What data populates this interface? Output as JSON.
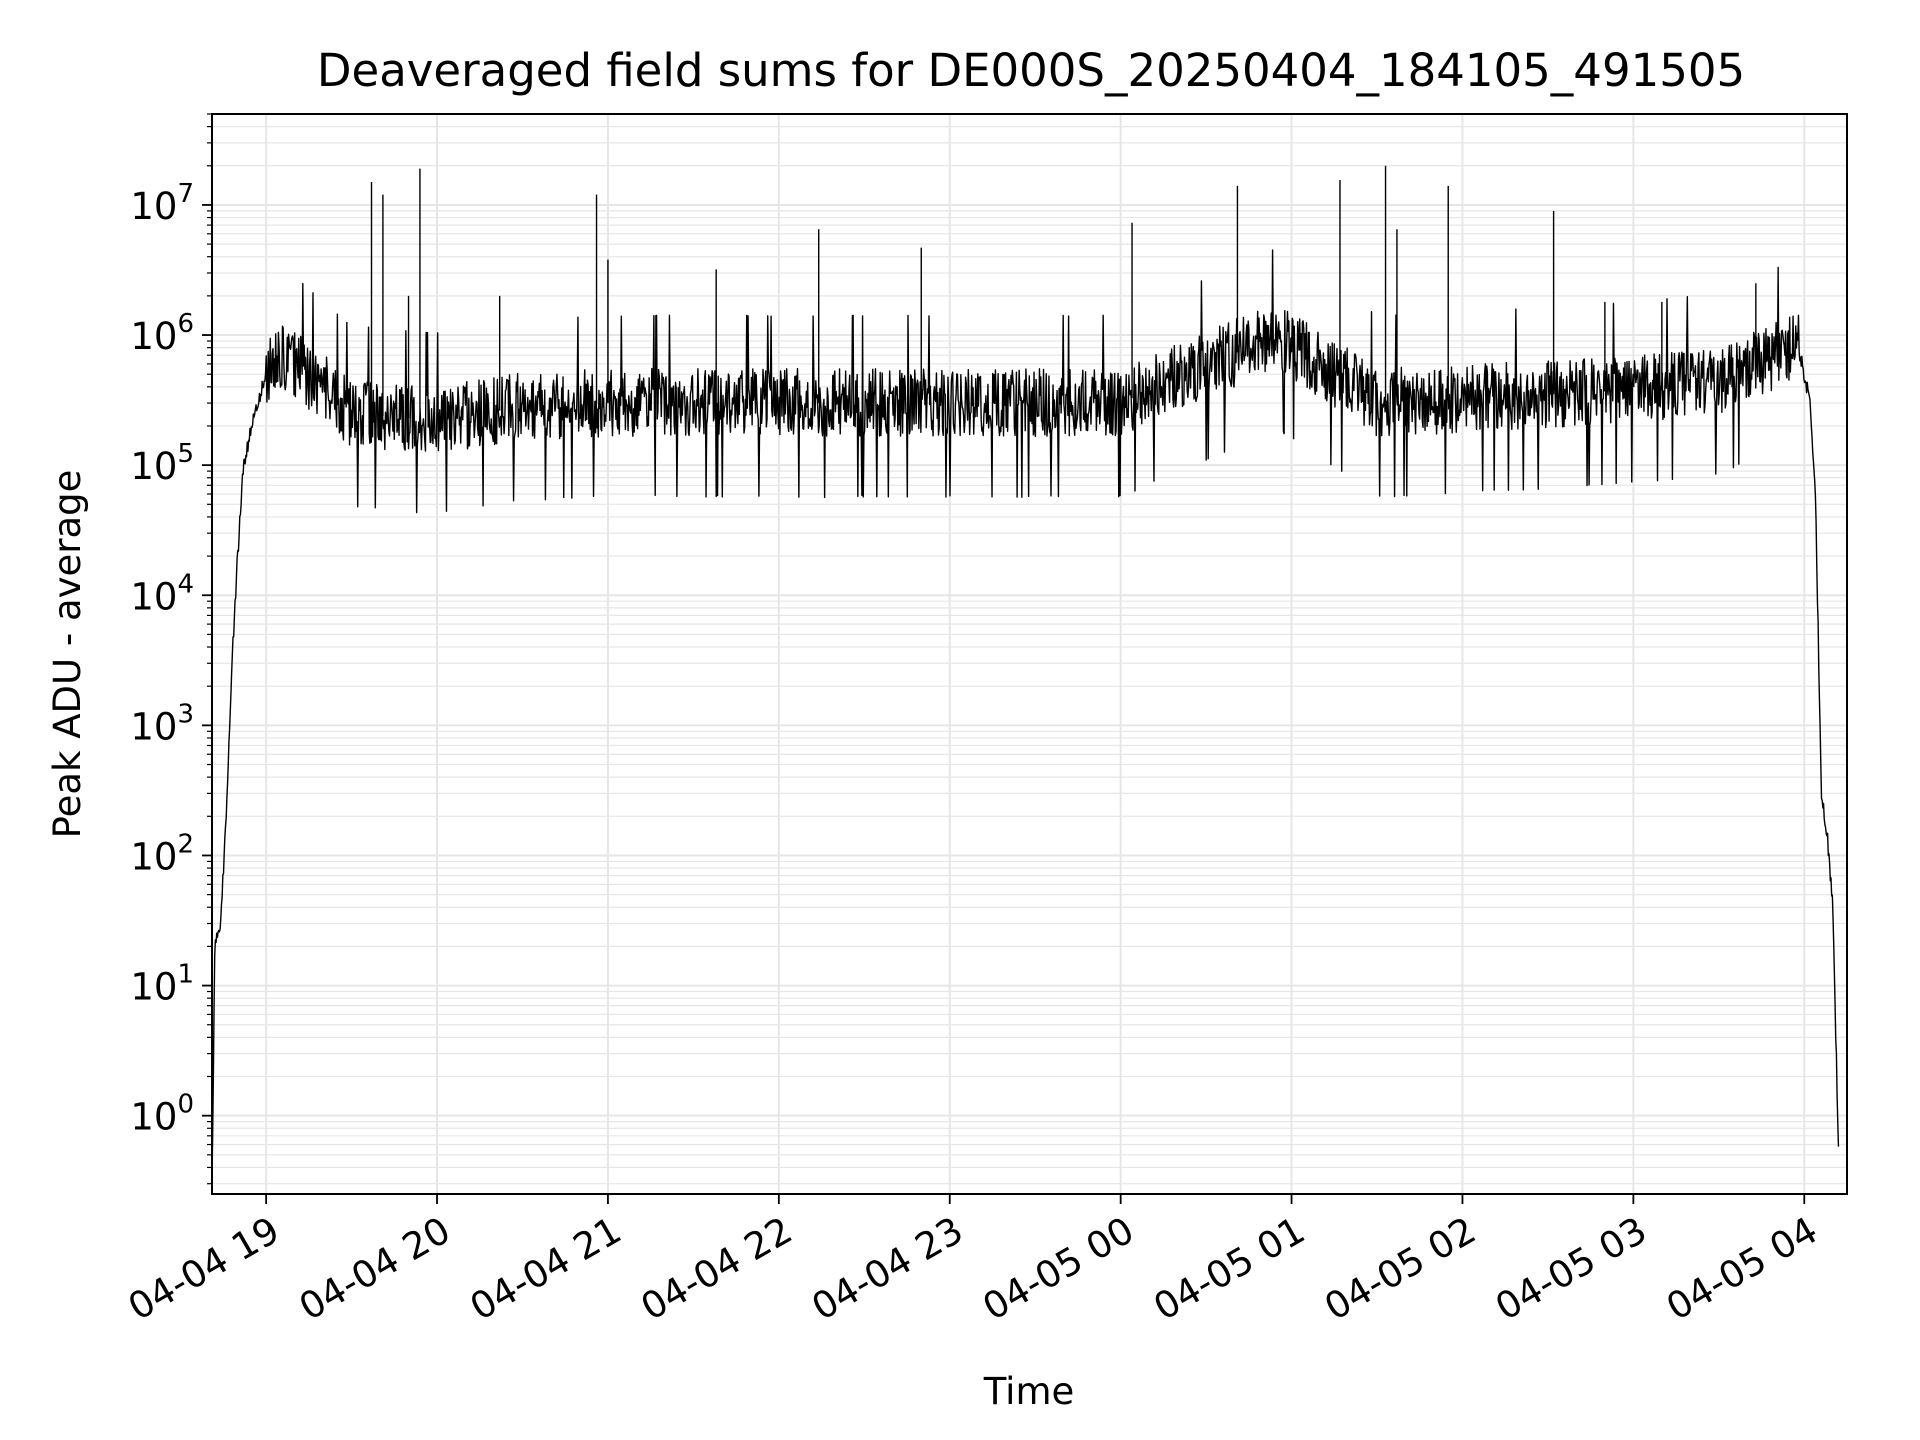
{
  "chart_data": {
    "type": "line",
    "title": "Deaveraged field sums for DE000S_20250404_184105_491505",
    "xlabel": "Time",
    "ylabel": "Peak ADU - average",
    "yscale": "log",
    "ylim": [
      0.25,
      50000000
    ],
    "xlim": [
      "2025-04-04 18:41",
      "2025-04-05 04:15"
    ],
    "grid": true,
    "line_color": "#000000",
    "grid_color": "#e6e6e6",
    "x_ticks": [
      "04-04 19",
      "04-04 20",
      "04-04 21",
      "04-04 22",
      "04-04 23",
      "04-05 00",
      "04-05 01",
      "04-05 02",
      "04-05 03",
      "04-05 04"
    ],
    "y_ticks": [
      {
        "base": "10",
        "exp": "0"
      },
      {
        "base": "10",
        "exp": "1"
      },
      {
        "base": "10",
        "exp": "2"
      },
      {
        "base": "10",
        "exp": "3"
      },
      {
        "base": "10",
        "exp": "4"
      },
      {
        "base": "10",
        "exp": "5"
      },
      {
        "base": "10",
        "exp": "6"
      },
      {
        "base": "10",
        "exp": "7"
      }
    ],
    "series": [
      {
        "x": [
          "2025-04-04 18:41",
          "2025-04-04 18:42",
          "2025-04-04 18:44",
          "2025-04-04 18:46",
          "2025-04-04 18:48",
          "2025-04-04 18:50",
          "2025-04-04 18:52",
          "2025-04-04 18:55",
          "2025-04-04 19:00",
          "2025-04-04 19:05",
          "2025-04-04 19:10",
          "2025-04-04 19:30",
          "2025-04-04 20:00",
          "2025-04-04 20:30",
          "2025-04-04 21:00",
          "2025-04-04 22:00",
          "2025-04-04 23:00",
          "2025-04-05 00:00",
          "2025-04-05 00:55",
          "2025-04-05 01:30",
          "2025-04-05 02:00",
          "2025-04-05 03:00",
          "2025-04-05 03:30",
          "2025-04-05 03:50",
          "2025-04-05 03:58",
          "2025-04-05 04:02",
          "2025-04-05 04:04",
          "2025-04-05 04:06",
          "2025-04-05 04:08",
          "2025-04-05 04:10",
          "2025-04-05 04:12"
        ],
        "y": [
          0.3,
          20,
          30,
          200,
          3000,
          20000,
          100000,
          200000,
          500000,
          650000,
          600000,
          250000,
          220000,
          280000,
          300000,
          300000,
          300000,
          300000,
          1000000,
          300000,
          320000,
          380000,
          450000,
          700000,
          800000,
          300000,
          50000,
          300,
          150,
          40,
          0.6
        ]
      }
    ],
    "spikes": [
      {
        "x": "2025-04-04 19:37",
        "y": 15000000
      },
      {
        "x": "2025-04-04 19:41",
        "y": 12000000
      },
      {
        "x": "2025-04-04 19:50",
        "y": 2000000
      },
      {
        "x": "2025-04-04 19:54",
        "y": 19000000
      },
      {
        "x": "2025-04-04 20:22",
        "y": 2000000
      },
      {
        "x": "2025-04-04 20:56",
        "y": 12000000
      },
      {
        "x": "2025-04-04 21:00",
        "y": 3800000
      },
      {
        "x": "2025-04-04 21:38",
        "y": 3200000
      },
      {
        "x": "2025-04-04 22:14",
        "y": 6500000
      },
      {
        "x": "2025-04-04 22:50",
        "y": 4700000
      },
      {
        "x": "2025-04-05 00:04",
        "y": 7300000
      },
      {
        "x": "2025-04-05 00:41",
        "y": 14000000
      },
      {
        "x": "2025-04-05 01:17",
        "y": 15500000
      },
      {
        "x": "2025-04-05 01:33",
        "y": 20000000
      },
      {
        "x": "2025-04-05 01:37",
        "y": 6500000
      },
      {
        "x": "2025-04-05 01:55",
        "y": 14000000
      },
      {
        "x": "2025-04-05 02:32",
        "y": 9000000
      },
      {
        "x": "2025-04-05 02:50",
        "y": 1800000
      },
      {
        "x": "2025-04-05 03:10",
        "y": 1800000
      },
      {
        "x": "2025-04-05 03:43",
        "y": 2500000
      }
    ]
  }
}
